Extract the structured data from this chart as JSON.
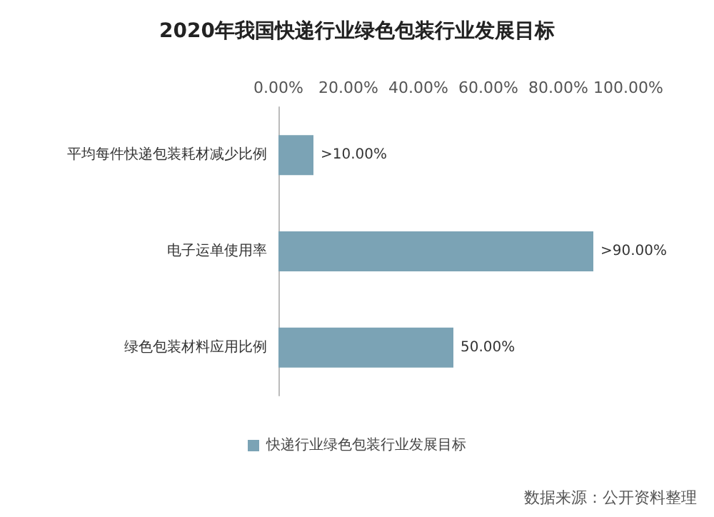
{
  "chart_data": {
    "type": "bar",
    "orientation": "horizontal",
    "title": "2020年我国快递行业绿色包装行业发展目标",
    "categories": [
      "平均每件快递包装耗材减少比例",
      "电子运单使用率",
      "绿色包装材料应用比例"
    ],
    "series": [
      {
        "name": "快递行业绿色包装行业发展目标",
        "color": "#7ba3b5",
        "values": [
          10,
          90,
          50
        ],
        "value_labels": [
          ">10.00%",
          ">90.00%",
          "50.00%"
        ]
      }
    ],
    "xlim": [
      0,
      100
    ],
    "xticks": [
      {
        "value": 0,
        "label": "0.00%"
      },
      {
        "value": 20,
        "label": "20.00%"
      },
      {
        "value": 40,
        "label": "40.00%"
      },
      {
        "value": 60,
        "label": "60.00%"
      },
      {
        "value": 80,
        "label": "80.00%"
      },
      {
        "value": 100,
        "label": "100.00%"
      }
    ],
    "legend": "bottom",
    "grid": false,
    "annotations": [
      "数据来源：公开资料整理"
    ]
  }
}
